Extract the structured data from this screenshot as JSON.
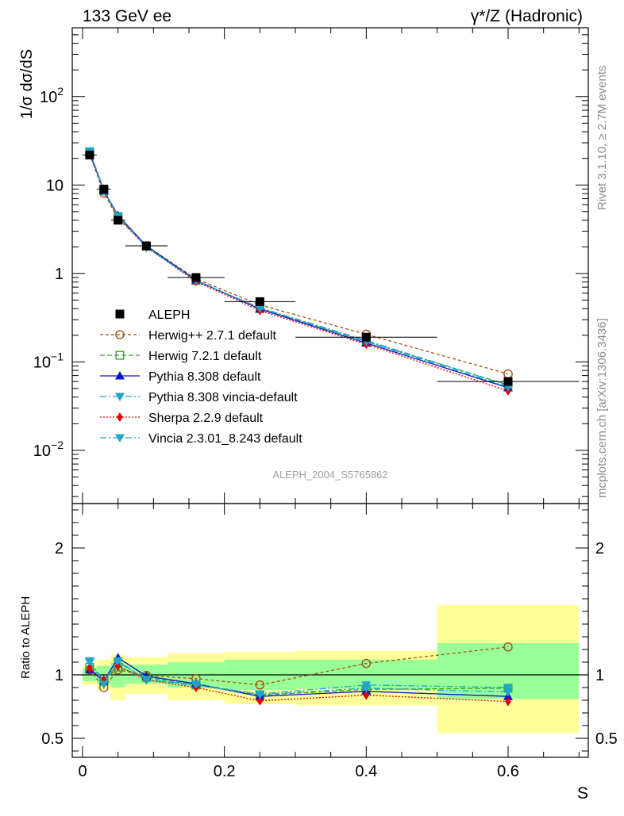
{
  "header": {
    "left_title": "133 GeV ee",
    "right_title": "γ*/Z (Hadronic)"
  },
  "side_labels": {
    "rivet": "Rivet 3.1.10, ≥ 2.7M events",
    "mcplots": "mcplots.cern.ch [arXiv:1306.3436]"
  },
  "analysis_label": "ALEPH_2004_S5765862",
  "colors": {
    "data": "#000000",
    "herwigpp": "#a0520f",
    "herwig7": "#3aa02e",
    "pythia": "#0a14c8",
    "pythia_vincia": "#1ea5c8",
    "sherpa": "#e60000",
    "vincia": "#1ea5c8",
    "band_outer": "#ffff99",
    "band_inner": "#99ff99"
  },
  "chart_data": [
    {
      "type": "scatter",
      "name": "main",
      "xlabel": "S",
      "ylabel": "1/σ  dσ/dS",
      "yscale": "log",
      "xlim": [
        0,
        0.7
      ],
      "ylim": [
        0.0025,
        600
      ],
      "x_ticks": [
        "0",
        "0.2",
        "0.4",
        "0.6"
      ],
      "y_ticks": [
        {
          "value": 0.01,
          "base": "10",
          "exp": "−2"
        },
        {
          "value": 0.1,
          "base": "10",
          "exp": "−1"
        },
        {
          "value": 1,
          "base": "1",
          "exp": ""
        },
        {
          "value": 10,
          "base": "10",
          "exp": ""
        },
        {
          "value": 100,
          "base": "10",
          "exp": "2"
        }
      ],
      "legend_position": "lower-left",
      "x": [
        0.01,
        0.03,
        0.05,
        0.09,
        0.16,
        0.25,
        0.4,
        0.6
      ],
      "data": {
        "name": "ALEPH",
        "values": [
          21.8,
          9.0,
          4.0,
          2.05,
          0.9,
          0.48,
          0.19,
          0.06
        ],
        "xerr": [
          0.01,
          0.01,
          0.01,
          0.03,
          0.04,
          0.05,
          0.1,
          0.1
        ]
      },
      "series": [
        {
          "name": "Herwig++ 2.7.1 default",
          "key": "herwigpp",
          "marker": "open-circle",
          "dash": "4,3",
          "values": [
            22.6,
            8.1,
            4.2,
            2.05,
            0.87,
            0.44,
            0.205,
            0.073
          ]
        },
        {
          "name": "Herwig 7.2.1 default",
          "key": "herwig7",
          "marker": "open-square",
          "dash": "6,3",
          "values": [
            23.4,
            8.6,
            4.4,
            2.03,
            0.83,
            0.4,
            0.17,
            0.055
          ]
        },
        {
          "name": "Pythia 8.308 default",
          "key": "pythia",
          "marker": "triangle-up",
          "dash": "",
          "values": [
            22.8,
            8.6,
            4.55,
            2.05,
            0.84,
            0.395,
            0.163,
            0.051
          ]
        },
        {
          "name": "Pythia 8.308 vincia-default",
          "key": "pythia_vincia",
          "marker": "triangle-down",
          "dash": "8,3,2,3",
          "values": [
            24.0,
            8.9,
            4.45,
            2.0,
            0.825,
            0.41,
            0.175,
            0.054
          ]
        },
        {
          "name": "Sherpa 2.2.9 default",
          "key": "sherpa",
          "marker": "diamond",
          "dash": "2,2",
          "values": [
            23.0,
            8.7,
            4.3,
            1.97,
            0.81,
            0.38,
            0.158,
            0.047
          ]
        },
        {
          "name": "Vincia 2.3.01_8.243 default",
          "key": "vincia",
          "marker": "triangle-down",
          "dash": "8,3,2,3",
          "values": [
            24.3,
            8.5,
            4.45,
            1.97,
            0.835,
            0.405,
            0.17,
            0.052
          ]
        }
      ]
    },
    {
      "type": "scatter",
      "name": "ratio",
      "ylabel": "Ratio to ALEPH",
      "xlabel": "S",
      "xlim": [
        0,
        0.7
      ],
      "ylim": [
        0.35,
        2.35
      ],
      "x_ticks": [
        "0",
        "0.2",
        "0.4",
        "0.6"
      ],
      "y_ticks": [
        "0.5",
        "1",
        "2"
      ],
      "y_tick_values": [
        0.5,
        1,
        2
      ],
      "bands": [
        {
          "x0": 0.0,
          "x1": 0.02,
          "inner": [
            0.95,
            1.05
          ],
          "outer": [
            0.92,
            1.08
          ]
        },
        {
          "x0": 0.02,
          "x1": 0.04,
          "inner": [
            0.93,
            1.07
          ],
          "outer": [
            0.88,
            1.12
          ]
        },
        {
          "x0": 0.04,
          "x1": 0.06,
          "inner": [
            0.9,
            1.1
          ],
          "outer": [
            0.8,
            1.16
          ]
        },
        {
          "x0": 0.06,
          "x1": 0.12,
          "inner": [
            0.93,
            1.08
          ],
          "outer": [
            0.85,
            1.14
          ]
        },
        {
          "x0": 0.12,
          "x1": 0.2,
          "inner": [
            0.9,
            1.1
          ],
          "outer": [
            0.8,
            1.17
          ]
        },
        {
          "x0": 0.2,
          "x1": 0.3,
          "inner": [
            0.88,
            1.12
          ],
          "outer": [
            0.77,
            1.18
          ]
        },
        {
          "x0": 0.3,
          "x1": 0.5,
          "inner": [
            0.89,
            1.12
          ],
          "outer": [
            0.76,
            1.19
          ]
        },
        {
          "x0": 0.5,
          "x1": 0.7,
          "inner": [
            0.81,
            1.25
          ],
          "outer": [
            0.54,
            1.55
          ]
        }
      ],
      "x": [
        0.01,
        0.03,
        0.05,
        0.09,
        0.16,
        0.25,
        0.4,
        0.6
      ],
      "series": [
        {
          "name": "Herwig++ 2.7.1 default",
          "key": "herwigpp",
          "marker": "open-circle",
          "dash": "4,3",
          "values": [
            1.04,
            0.9,
            1.04,
            0.995,
            0.97,
            0.92,
            1.09,
            1.22
          ]
        },
        {
          "name": "Herwig 7.2.1 default",
          "key": "herwig7",
          "marker": "open-square",
          "dash": "6,3",
          "values": [
            1.06,
            0.95,
            1.06,
            0.98,
            0.92,
            0.84,
            0.885,
            0.895
          ]
        },
        {
          "name": "Pythia 8.308 default",
          "key": "pythia",
          "marker": "triangle-up",
          "dash": "",
          "values": [
            1.04,
            0.95,
            1.135,
            0.99,
            0.93,
            0.83,
            0.87,
            0.83
          ]
        },
        {
          "name": "Pythia 8.308 vincia-default",
          "key": "pythia_vincia",
          "marker": "triangle-down",
          "dash": "8,3,2,3",
          "values": [
            1.1,
            0.955,
            1.1,
            0.965,
            0.915,
            0.85,
            0.92,
            0.9
          ]
        },
        {
          "name": "Sherpa 2.2.9 default",
          "key": "sherpa",
          "marker": "diamond",
          "dash": "2,2",
          "values": [
            1.05,
            0.96,
            1.07,
            0.96,
            0.9,
            0.795,
            0.84,
            0.79
          ]
        },
        {
          "name": "Vincia 2.3.01_8.243 default",
          "key": "vincia",
          "marker": "triangle-down",
          "dash": "8,3,2,3",
          "values": [
            1.11,
            0.925,
            1.11,
            0.96,
            0.925,
            0.845,
            0.895,
            0.865
          ]
        }
      ]
    }
  ]
}
